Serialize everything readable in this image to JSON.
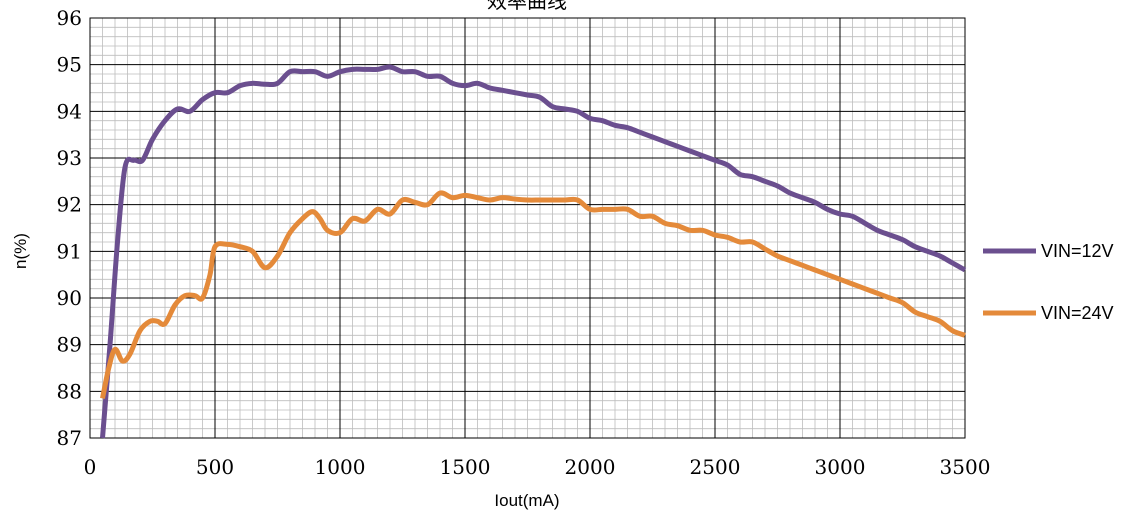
{
  "chart_data": {
    "type": "line",
    "title": "效率曲线",
    "xlabel": "Iout(mA)",
    "ylabel": "n(%)",
    "xlim": [
      0,
      3500
    ],
    "ylim": [
      87,
      96
    ],
    "x_ticks": [
      "0",
      "500",
      "1000",
      "1500",
      "2000",
      "2500",
      "3000",
      "3500"
    ],
    "y_ticks": [
      "87",
      "88",
      "89",
      "90",
      "91",
      "92",
      "93",
      "94",
      "95",
      "96"
    ],
    "grid": true,
    "legend_position": "right",
    "series": [
      {
        "name": "VIN=12V",
        "color": "#6b4f8f",
        "points": [
          [
            50,
            87.0
          ],
          [
            80,
            89.0
          ],
          [
            110,
            91.2
          ],
          [
            140,
            92.8
          ],
          [
            175,
            92.95
          ],
          [
            210,
            92.95
          ],
          [
            250,
            93.4
          ],
          [
            300,
            93.8
          ],
          [
            350,
            94.05
          ],
          [
            400,
            94.0
          ],
          [
            450,
            94.25
          ],
          [
            500,
            94.4
          ],
          [
            550,
            94.4
          ],
          [
            600,
            94.55
          ],
          [
            650,
            94.6
          ],
          [
            700,
            94.58
          ],
          [
            750,
            94.6
          ],
          [
            800,
            94.85
          ],
          [
            850,
            94.85
          ],
          [
            900,
            94.85
          ],
          [
            950,
            94.75
          ],
          [
            1000,
            94.85
          ],
          [
            1050,
            94.9
          ],
          [
            1100,
            94.9
          ],
          [
            1150,
            94.9
          ],
          [
            1200,
            94.95
          ],
          [
            1250,
            94.85
          ],
          [
            1300,
            94.85
          ],
          [
            1350,
            94.75
          ],
          [
            1400,
            94.75
          ],
          [
            1450,
            94.6
          ],
          [
            1500,
            94.55
          ],
          [
            1550,
            94.6
          ],
          [
            1600,
            94.5
          ],
          [
            1650,
            94.45
          ],
          [
            1700,
            94.4
          ],
          [
            1750,
            94.35
          ],
          [
            1800,
            94.3
          ],
          [
            1850,
            94.1
          ],
          [
            1900,
            94.05
          ],
          [
            1950,
            94.0
          ],
          [
            2000,
            93.85
          ],
          [
            2050,
            93.8
          ],
          [
            2100,
            93.7
          ],
          [
            2150,
            93.65
          ],
          [
            2200,
            93.55
          ],
          [
            2250,
            93.45
          ],
          [
            2300,
            93.35
          ],
          [
            2350,
            93.25
          ],
          [
            2400,
            93.15
          ],
          [
            2450,
            93.05
          ],
          [
            2500,
            92.95
          ],
          [
            2550,
            92.85
          ],
          [
            2600,
            92.65
          ],
          [
            2650,
            92.6
          ],
          [
            2700,
            92.5
          ],
          [
            2750,
            92.4
          ],
          [
            2800,
            92.25
          ],
          [
            2850,
            92.15
          ],
          [
            2900,
            92.05
          ],
          [
            2950,
            91.9
          ],
          [
            3000,
            91.8
          ],
          [
            3050,
            91.75
          ],
          [
            3100,
            91.6
          ],
          [
            3150,
            91.45
          ],
          [
            3200,
            91.35
          ],
          [
            3250,
            91.25
          ],
          [
            3300,
            91.1
          ],
          [
            3350,
            91.0
          ],
          [
            3400,
            90.9
          ],
          [
            3450,
            90.75
          ],
          [
            3500,
            90.6
          ]
        ]
      },
      {
        "name": "VIN=24V",
        "color": "#e48a3a",
        "points": [
          [
            50,
            87.85
          ],
          [
            75,
            88.5
          ],
          [
            100,
            88.9
          ],
          [
            130,
            88.65
          ],
          [
            160,
            88.8
          ],
          [
            200,
            89.3
          ],
          [
            240,
            89.5
          ],
          [
            270,
            89.5
          ],
          [
            300,
            89.45
          ],
          [
            340,
            89.85
          ],
          [
            380,
            90.05
          ],
          [
            420,
            90.05
          ],
          [
            450,
            90.0
          ],
          [
            480,
            90.5
          ],
          [
            500,
            91.1
          ],
          [
            550,
            91.15
          ],
          [
            600,
            91.1
          ],
          [
            650,
            91.0
          ],
          [
            700,
            90.65
          ],
          [
            750,
            90.9
          ],
          [
            800,
            91.4
          ],
          [
            850,
            91.7
          ],
          [
            890,
            91.85
          ],
          [
            920,
            91.7
          ],
          [
            950,
            91.45
          ],
          [
            1000,
            91.4
          ],
          [
            1050,
            91.7
          ],
          [
            1100,
            91.65
          ],
          [
            1150,
            91.9
          ],
          [
            1200,
            91.8
          ],
          [
            1250,
            92.1
          ],
          [
            1300,
            92.05
          ],
          [
            1350,
            92.0
          ],
          [
            1400,
            92.25
          ],
          [
            1450,
            92.15
          ],
          [
            1500,
            92.2
          ],
          [
            1550,
            92.15
          ],
          [
            1600,
            92.1
          ],
          [
            1650,
            92.15
          ],
          [
            1700,
            92.12
          ],
          [
            1750,
            92.1
          ],
          [
            1800,
            92.1
          ],
          [
            1850,
            92.1
          ],
          [
            1900,
            92.1
          ],
          [
            1950,
            92.1
          ],
          [
            2000,
            91.9
          ],
          [
            2050,
            91.9
          ],
          [
            2100,
            91.9
          ],
          [
            2150,
            91.9
          ],
          [
            2200,
            91.75
          ],
          [
            2250,
            91.75
          ],
          [
            2300,
            91.6
          ],
          [
            2350,
            91.55
          ],
          [
            2400,
            91.45
          ],
          [
            2450,
            91.45
          ],
          [
            2500,
            91.35
          ],
          [
            2550,
            91.3
          ],
          [
            2600,
            91.2
          ],
          [
            2650,
            91.2
          ],
          [
            2700,
            91.05
          ],
          [
            2750,
            90.9
          ],
          [
            2800,
            90.8
          ],
          [
            2850,
            90.7
          ],
          [
            2900,
            90.6
          ],
          [
            2950,
            90.5
          ],
          [
            3000,
            90.4
          ],
          [
            3050,
            90.3
          ],
          [
            3100,
            90.2
          ],
          [
            3150,
            90.1
          ],
          [
            3200,
            90.0
          ],
          [
            3250,
            89.9
          ],
          [
            3300,
            89.7
          ],
          [
            3350,
            89.6
          ],
          [
            3400,
            89.5
          ],
          [
            3450,
            89.3
          ],
          [
            3500,
            89.2
          ]
        ]
      }
    ]
  }
}
